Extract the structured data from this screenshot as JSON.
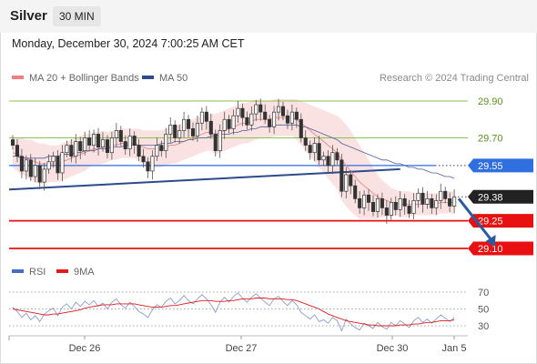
{
  "header": {
    "instrument": "Silver",
    "interval": "30 MIN",
    "timestamp": "Monday, December 30, 2024 7:00:25 AM CET"
  },
  "legend": {
    "bollinger_label": "MA 20 + Bollinger Bands",
    "bollinger_color": "#f08080",
    "ma50_label": "MA 50",
    "ma50_color": "#2c4a8c",
    "rsi_label": "RSI",
    "rsi_color": "#4a6cc0",
    "rsi9_label": "9MA",
    "rsi9_color": "#e31a1c",
    "credit": "Research © 2024 Trading Central"
  },
  "chart_data": {
    "type": "candlestick",
    "instrument": "Silver",
    "interval": "30 MIN",
    "ylim": [
      29.03,
      29.98
    ],
    "x_ticks": [
      "Dec 26",
      "Dec 27",
      "Dec 30",
      "Jan 5"
    ],
    "price_levels": [
      {
        "value": 29.9,
        "label": "29.90",
        "kind": "resistance",
        "color": "#8bc34a"
      },
      {
        "value": 29.7,
        "label": "29.70",
        "kind": "resistance",
        "color": "#8bc34a"
      },
      {
        "value": 29.55,
        "label": "29.55",
        "kind": "pivot",
        "color": "#2f6fe0"
      },
      {
        "value": 29.38,
        "label": "29.38",
        "kind": "last",
        "color": "#222222"
      },
      {
        "value": 29.25,
        "label": "29.25",
        "kind": "support",
        "color": "#e81010"
      },
      {
        "value": 29.1,
        "label": "29.10",
        "kind": "support",
        "color": "#e81010"
      }
    ],
    "trendline": {
      "start": [
        0,
        29.42
      ],
      "end": [
        86,
        29.53
      ],
      "color": "#2c4a8c"
    },
    "forecast_arrow": {
      "from": [
        99,
        29.37
      ],
      "to": [
        107,
        29.11
      ],
      "color": "#2c5aa0"
    },
    "close": [
      29.66,
      29.6,
      29.52,
      29.58,
      29.49,
      29.55,
      29.46,
      29.53,
      29.57,
      29.6,
      29.51,
      29.62,
      29.66,
      29.6,
      29.68,
      29.63,
      29.7,
      29.66,
      29.72,
      29.65,
      29.69,
      29.62,
      29.7,
      29.74,
      29.68,
      29.64,
      29.71,
      29.66,
      29.6,
      29.57,
      29.52,
      29.6,
      29.66,
      29.63,
      29.72,
      29.77,
      29.7,
      29.74,
      29.8,
      29.75,
      29.71,
      29.78,
      29.84,
      29.79,
      29.72,
      29.63,
      29.74,
      29.8,
      29.75,
      29.82,
      29.86,
      29.81,
      29.77,
      29.83,
      29.88,
      29.84,
      29.8,
      29.76,
      29.84,
      29.87,
      29.82,
      29.78,
      29.84,
      29.8,
      29.7,
      29.66,
      29.62,
      29.67,
      29.58,
      29.6,
      29.55,
      29.62,
      29.58,
      29.41,
      29.5,
      29.44,
      29.37,
      29.32,
      29.39,
      29.35,
      29.3,
      29.37,
      29.32,
      29.28,
      29.35,
      29.31,
      29.37,
      29.33,
      29.29,
      29.36,
      29.4,
      29.34,
      29.37,
      29.32,
      29.36,
      29.41,
      29.37,
      29.33,
      29.38
    ],
    "ma20": [
      29.62,
      29.61,
      29.6,
      29.59,
      29.58,
      29.57,
      29.56,
      29.56,
      29.56,
      29.56,
      29.56,
      29.57,
      29.58,
      29.59,
      29.6,
      29.61,
      29.62,
      29.63,
      29.64,
      29.64,
      29.65,
      29.65,
      29.66,
      29.66,
      29.67,
      29.67,
      29.67,
      29.67,
      29.66,
      29.65,
      29.64,
      29.64,
      29.64,
      29.64,
      29.65,
      29.66,
      29.66,
      29.67,
      29.68,
      29.69,
      29.7,
      29.71,
      29.72,
      29.73,
      29.73,
      29.72,
      29.73,
      29.74,
      29.75,
      29.76,
      29.77,
      29.78,
      29.78,
      29.79,
      29.8,
      29.8,
      29.8,
      29.8,
      29.81,
      29.81,
      29.81,
      29.81,
      29.81,
      29.8,
      29.78,
      29.76,
      29.74,
      29.72,
      29.7,
      29.68,
      29.66,
      29.64,
      29.62,
      29.58,
      29.55,
      29.52,
      29.49,
      29.46,
      29.44,
      29.42,
      29.4,
      29.38,
      29.37,
      29.36,
      29.35,
      29.35,
      29.34,
      29.34,
      29.34,
      29.34,
      29.34,
      29.34,
      29.34,
      29.34,
      29.34,
      29.35,
      29.35,
      29.35,
      29.35
    ],
    "ma50": [
      29.6,
      29.6,
      29.59,
      29.59,
      29.59,
      29.59,
      29.59,
      29.59,
      29.6,
      29.6,
      29.6,
      29.61,
      29.61,
      29.61,
      29.62,
      29.62,
      29.63,
      29.63,
      29.63,
      29.64,
      29.64,
      29.64,
      29.65,
      29.65,
      29.65,
      29.66,
      29.66,
      29.66,
      29.66,
      29.66,
      29.66,
      29.66,
      29.66,
      29.67,
      29.67,
      29.67,
      29.68,
      29.68,
      29.68,
      29.69,
      29.69,
      29.7,
      29.7,
      29.7,
      29.71,
      29.71,
      29.72,
      29.72,
      29.72,
      29.73,
      29.73,
      29.74,
      29.74,
      29.75,
      29.75,
      29.76,
      29.76,
      29.76,
      29.77,
      29.77,
      29.77,
      29.77,
      29.77,
      29.77,
      29.76,
      29.76,
      29.75,
      29.74,
      29.73,
      29.72,
      29.71,
      29.7,
      29.69,
      29.67,
      29.66,
      29.65,
      29.64,
      29.63,
      29.62,
      29.61,
      29.6,
      29.59,
      29.58,
      29.58,
      29.57,
      29.56,
      29.56,
      29.55,
      29.54,
      29.54,
      29.53,
      29.53,
      29.52,
      29.51,
      29.51,
      29.5,
      29.49,
      29.49,
      29.48
    ],
    "bb_width": [
      0.08,
      0.09,
      0.1,
      0.1,
      0.11,
      0.11,
      0.11,
      0.11,
      0.1,
      0.1,
      0.1,
      0.1,
      0.1,
      0.1,
      0.1,
      0.1,
      0.1,
      0.09,
      0.09,
      0.09,
      0.09,
      0.08,
      0.08,
      0.08,
      0.08,
      0.08,
      0.08,
      0.08,
      0.09,
      0.09,
      0.1,
      0.1,
      0.1,
      0.1,
      0.1,
      0.1,
      0.1,
      0.1,
      0.1,
      0.1,
      0.1,
      0.1,
      0.1,
      0.1,
      0.1,
      0.11,
      0.11,
      0.11,
      0.11,
      0.11,
      0.11,
      0.11,
      0.11,
      0.11,
      0.11,
      0.1,
      0.1,
      0.1,
      0.1,
      0.1,
      0.1,
      0.1,
      0.1,
      0.11,
      0.12,
      0.13,
      0.14,
      0.15,
      0.16,
      0.17,
      0.18,
      0.19,
      0.2,
      0.22,
      0.22,
      0.22,
      0.21,
      0.2,
      0.18,
      0.16,
      0.14,
      0.12,
      0.1,
      0.09,
      0.08,
      0.07,
      0.07,
      0.07,
      0.07,
      0.06,
      0.06,
      0.06,
      0.06,
      0.06,
      0.06,
      0.06,
      0.06,
      0.06,
      0.06
    ],
    "rsi": {
      "ylim": [
        22,
        78
      ],
      "ticks": [
        "70",
        "50",
        "30"
      ],
      "levels": [
        70,
        50,
        30
      ],
      "values": [
        52,
        47,
        40,
        45,
        37,
        42,
        35,
        44,
        48,
        51,
        42,
        52,
        56,
        50,
        58,
        53,
        59,
        55,
        60,
        53,
        57,
        50,
        58,
        62,
        55,
        51,
        58,
        53,
        47,
        44,
        40,
        49,
        55,
        52,
        59,
        63,
        56,
        60,
        66,
        60,
        56,
        62,
        67,
        62,
        55,
        46,
        58,
        64,
        58,
        65,
        69,
        63,
        58,
        64,
        68,
        63,
        58,
        54,
        62,
        65,
        59,
        54,
        60,
        55,
        46,
        42,
        38,
        43,
        35,
        37,
        33,
        40,
        36,
        24,
        38,
        32,
        28,
        25,
        33,
        30,
        27,
        34,
        29,
        26,
        34,
        30,
        36,
        32,
        28,
        36,
        40,
        34,
        38,
        33,
        38,
        43,
        39,
        35,
        40
      ],
      "ma9": [
        50,
        49,
        48,
        47,
        46,
        45,
        44,
        43,
        43,
        44,
        44,
        45,
        46,
        47,
        48,
        49,
        51,
        52,
        53,
        54,
        55,
        55,
        55,
        56,
        56,
        56,
        56,
        56,
        55,
        54,
        53,
        52,
        52,
        52,
        53,
        54,
        54,
        55,
        56,
        57,
        58,
        59,
        60,
        60,
        60,
        59,
        59,
        59,
        60,
        60,
        61,
        62,
        62,
        62,
        63,
        63,
        63,
        62,
        62,
        62,
        62,
        61,
        61,
        60,
        58,
        56,
        54,
        52,
        50,
        47,
        44,
        42,
        40,
        38,
        36,
        35,
        34,
        33,
        32,
        31,
        31,
        30,
        30,
        30,
        30,
        30,
        31,
        31,
        31,
        32,
        32,
        33,
        34,
        34,
        35,
        36,
        36,
        36,
        37
      ]
    }
  }
}
